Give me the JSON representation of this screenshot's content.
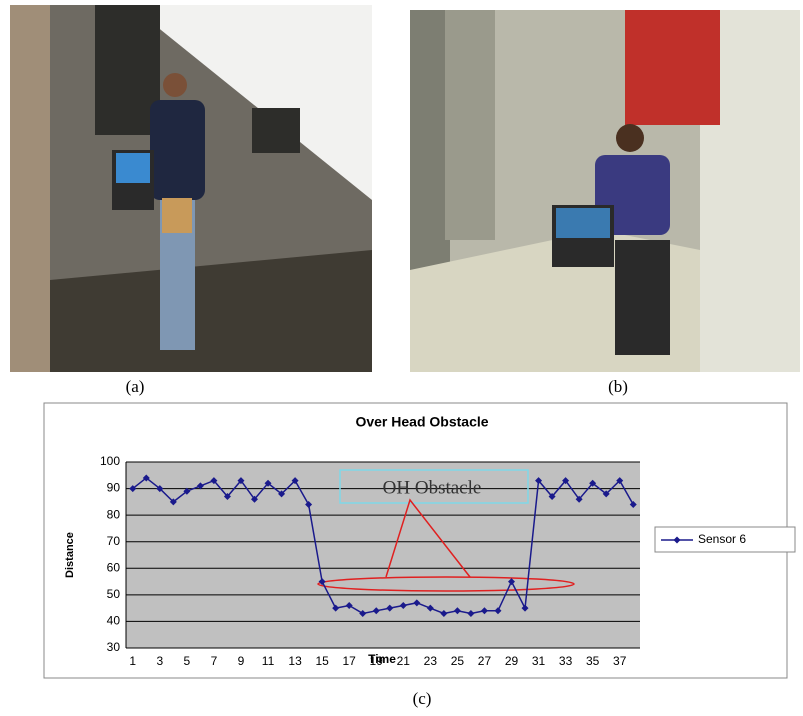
{
  "captions": [
    "(a)",
    "(b)",
    "(c)"
  ],
  "chart_data": {
    "type": "line",
    "title": "Over Head Obstacle",
    "x_label": "Time",
    "y_label": "Distance",
    "categories": [
      1,
      null,
      3,
      null,
      5,
      null,
      7,
      null,
      9,
      null,
      11,
      null,
      13,
      null,
      15,
      null,
      17,
      null,
      19,
      null,
      21,
      null,
      23,
      null,
      25,
      null,
      27,
      null,
      29,
      null,
      31,
      null,
      33,
      null,
      35,
      null,
      37,
      null
    ],
    "series": [
      {
        "name": "Sensor 6",
        "color": "#1a1a8c",
        "values": [
          90,
          94,
          90,
          85,
          89,
          91,
          93,
          87,
          93,
          86,
          92,
          88,
          93,
          84,
          55,
          45,
          46,
          43,
          44,
          45,
          46,
          47,
          45,
          43,
          44,
          43,
          44,
          44,
          55,
          45,
          93,
          87,
          93,
          86,
          92,
          88,
          93,
          84
        ]
      }
    ],
    "ylim": [
      30,
      100
    ],
    "yticks": [
      30,
      40,
      50,
      60,
      70,
      80,
      90,
      100
    ],
    "grid": true,
    "legend": "right",
    "plot_background": "#c0c0c0",
    "annotations": [
      "OH Obstacle"
    ]
  }
}
